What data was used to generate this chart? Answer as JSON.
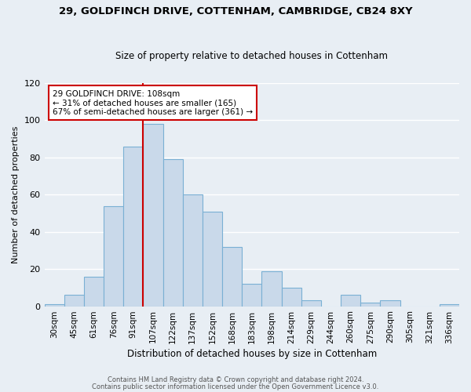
{
  "title1": "29, GOLDFINCH DRIVE, COTTENHAM, CAMBRIDGE, CB24 8XY",
  "title2": "Size of property relative to detached houses in Cottenham",
  "xlabel": "Distribution of detached houses by size in Cottenham",
  "ylabel": "Number of detached properties",
  "bar_labels": [
    "30sqm",
    "45sqm",
    "61sqm",
    "76sqm",
    "91sqm",
    "107sqm",
    "122sqm",
    "137sqm",
    "152sqm",
    "168sqm",
    "183sqm",
    "198sqm",
    "214sqm",
    "229sqm",
    "244sqm",
    "260sqm",
    "275sqm",
    "290sqm",
    "305sqm",
    "321sqm",
    "336sqm"
  ],
  "bar_values": [
    1,
    6,
    16,
    54,
    86,
    98,
    79,
    60,
    51,
    32,
    12,
    19,
    10,
    3,
    0,
    6,
    2,
    3,
    0,
    0,
    1
  ],
  "bar_color": "#c9d9ea",
  "bar_edgecolor": "#7ab0d4",
  "vline_color": "#cc0000",
  "annotation_title": "29 GOLDFINCH DRIVE: 108sqm",
  "annotation_line1": "← 31% of detached houses are smaller (165)",
  "annotation_line2": "67% of semi-detached houses are larger (361) →",
  "annotation_box_color": "#ffffff",
  "annotation_box_edgecolor": "#cc0000",
  "footer1": "Contains HM Land Registry data © Crown copyright and database right 2024.",
  "footer2": "Contains public sector information licensed under the Open Government Licence v3.0.",
  "ylim": [
    0,
    120
  ],
  "background_color": "#e8eef4",
  "grid_color": "#ffffff",
  "yticks": [
    0,
    20,
    40,
    60,
    80,
    100,
    120
  ]
}
